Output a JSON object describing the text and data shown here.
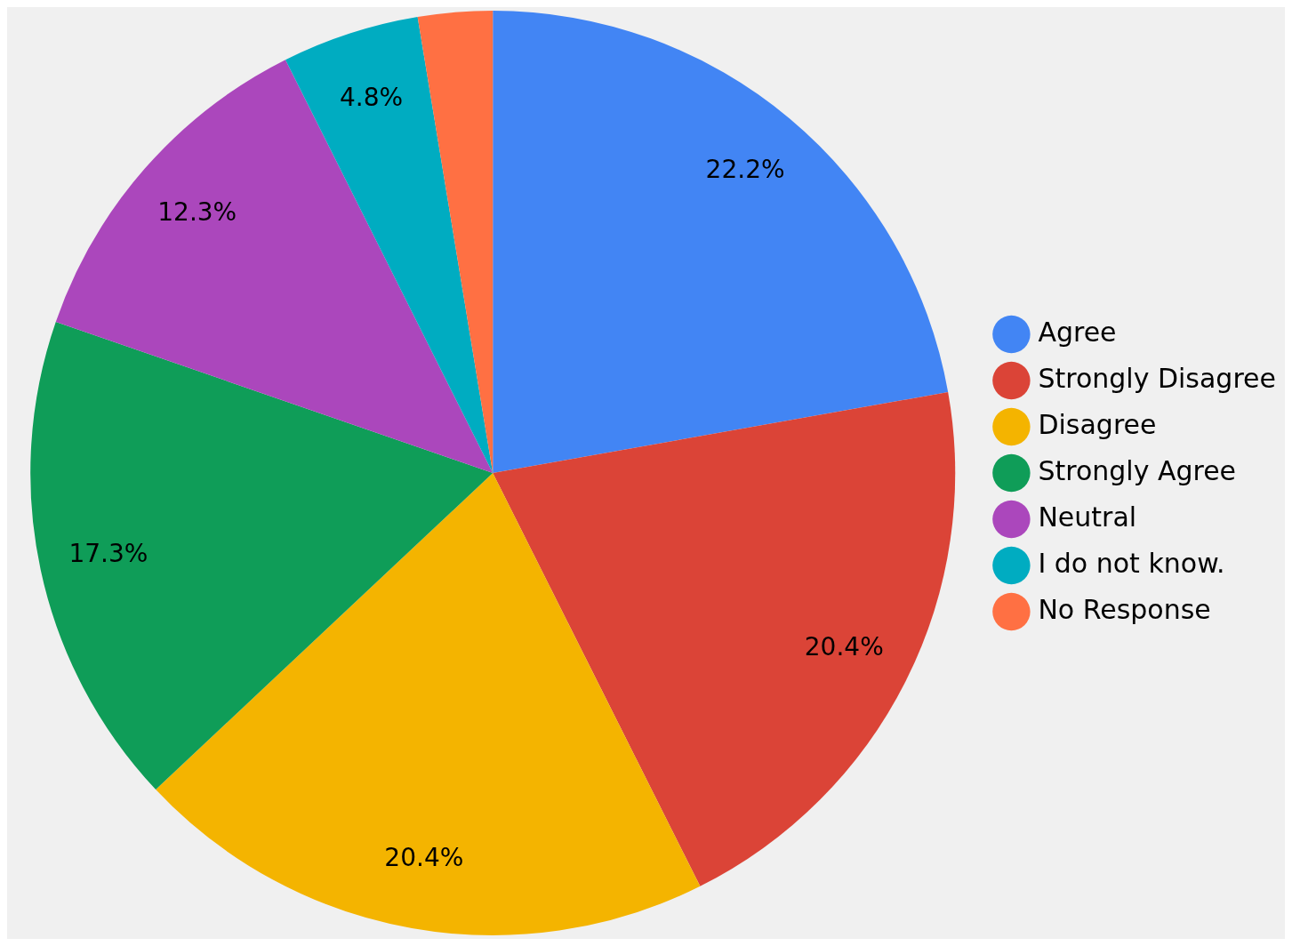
{
  "chart_data": {
    "type": "pie",
    "categories": [
      "Agree",
      "Strongly Disagree",
      "Disagree",
      "Strongly Agree",
      "Neutral",
      "I do not know.",
      "No Response"
    ],
    "values": [
      22.2,
      20.4,
      20.4,
      17.3,
      12.3,
      4.8,
      2.6
    ],
    "colors": [
      "#4285f4",
      "#db4437",
      "#f4b400",
      "#0f9d58",
      "#ab47bc",
      "#00acc1",
      "#ff7043"
    ],
    "value_labels": [
      "22.2%",
      "20.4%",
      "20.4%",
      "17.3%",
      "12.3%",
      "4.8%",
      null
    ],
    "legend": "right"
  }
}
